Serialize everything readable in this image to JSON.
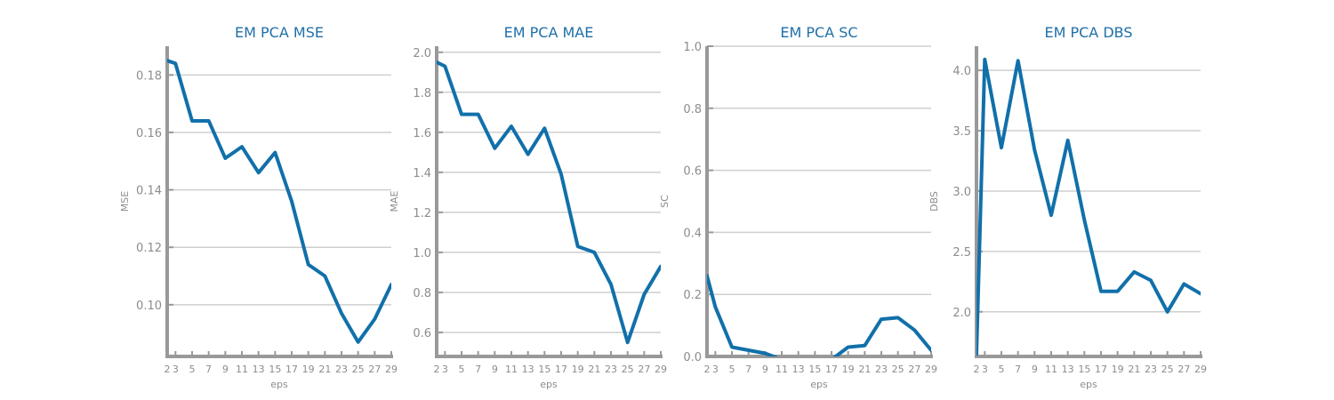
{
  "chart_data": [
    {
      "type": "line",
      "title": "EM PCA MSE",
      "xlabel": "eps",
      "ylabel": "MSE",
      "x": [
        2,
        3,
        5,
        7,
        9,
        11,
        13,
        15,
        17,
        19,
        21,
        23,
        25,
        27,
        29
      ],
      "values": [
        0.185,
        0.184,
        0.164,
        0.164,
        0.151,
        0.155,
        0.146,
        0.153,
        0.136,
        0.114,
        0.11,
        0.097,
        0.087,
        0.095,
        0.107
      ],
      "xlim": [
        2,
        29
      ],
      "ylim": [
        0.082,
        0.19
      ],
      "yticks": [
        0.1,
        0.12,
        0.14,
        0.16,
        0.18
      ],
      "ytick_labels": [
        "0.10",
        "0.12",
        "0.14",
        "0.16",
        "0.18"
      ],
      "grid": true,
      "color": "#1170aa"
    },
    {
      "type": "line",
      "title": "EM PCA MAE",
      "xlabel": "eps",
      "ylabel": "MAE",
      "x": [
        2,
        3,
        5,
        7,
        9,
        11,
        13,
        15,
        17,
        19,
        21,
        23,
        25,
        27,
        29
      ],
      "values": [
        1.95,
        1.93,
        1.69,
        1.69,
        1.52,
        1.63,
        1.49,
        1.62,
        1.39,
        1.03,
        1.0,
        0.84,
        0.55,
        0.79,
        0.93
      ],
      "xlim": [
        2,
        29
      ],
      "ylim": [
        0.48,
        2.03
      ],
      "yticks": [
        0.6,
        0.8,
        1.0,
        1.2,
        1.4,
        1.6,
        1.8,
        2.0
      ],
      "ytick_labels": [
        "0.6",
        "0.8",
        "1.0",
        "1.2",
        "1.4",
        "1.6",
        "1.8",
        "2.0"
      ],
      "grid": true,
      "color": "#1170aa"
    },
    {
      "type": "line",
      "title": "EM PCA SC",
      "xlabel": "eps",
      "ylabel": "SC",
      "x": [
        2,
        3,
        5,
        7,
        9,
        11,
        13,
        15,
        17,
        19,
        21,
        23,
        25,
        27,
        29
      ],
      "values": [
        0.26,
        0.16,
        0.03,
        0.02,
        0.01,
        -0.01,
        -0.01,
        -0.01,
        -0.01,
        0.03,
        0.035,
        0.12,
        0.125,
        0.085,
        0.02
      ],
      "xlim": [
        2,
        29
      ],
      "ylim": [
        0.0,
        1.0
      ],
      "yticks": [
        0.0,
        0.2,
        0.4,
        0.6,
        0.8,
        1.0
      ],
      "ytick_labels": [
        "0.0",
        "0.2",
        "0.4",
        "0.6",
        "0.8",
        "1.0"
      ],
      "grid": true,
      "color": "#1170aa"
    },
    {
      "type": "line",
      "title": "EM PCA DBS",
      "xlabel": "eps",
      "ylabel": "DBS",
      "x": [
        2,
        3,
        5,
        7,
        9,
        11,
        13,
        15,
        17,
        19,
        21,
        23,
        25,
        27,
        29
      ],
      "values": [
        1.65,
        4.09,
        3.36,
        4.08,
        3.34,
        2.8,
        3.42,
        2.76,
        2.17,
        2.17,
        2.33,
        2.26,
        2.0,
        2.23,
        2.15
      ],
      "xlim": [
        2,
        29
      ],
      "ylim": [
        1.63,
        4.2
      ],
      "yticks": [
        2.0,
        2.5,
        3.0,
        3.5,
        4.0
      ],
      "ytick_labels": [
        "2.0",
        "2.5",
        "3.0",
        "3.5",
        "4.0"
      ],
      "grid": true,
      "color": "#1170aa"
    }
  ]
}
